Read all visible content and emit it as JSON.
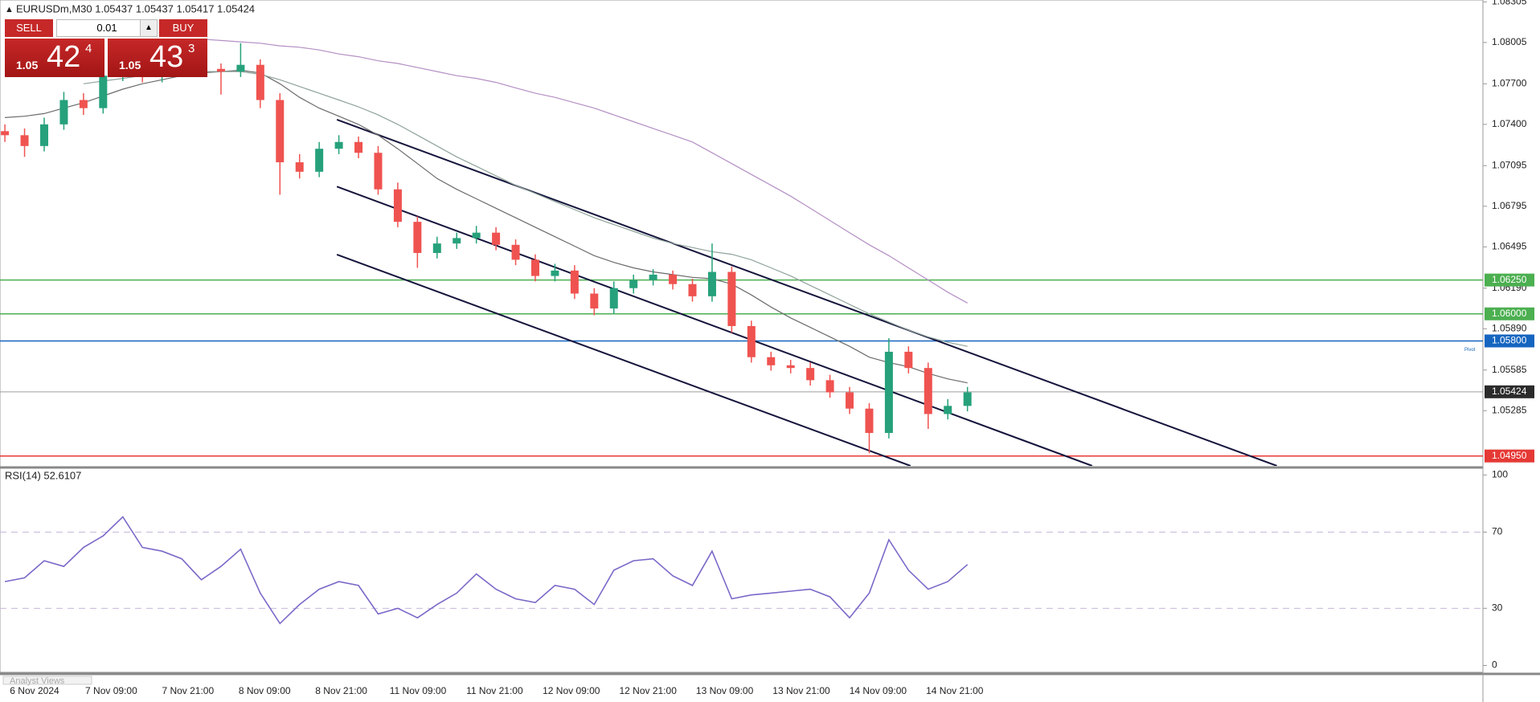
{
  "header": "EURUSDm,M30  1.05437 1.05437 1.05417 1.05424",
  "trade_panel": {
    "sell": "SELL",
    "buy": "BUY",
    "volume": "0.01",
    "bid": {
      "big": "1.05",
      "pips": "42",
      "point": "4"
    },
    "ask": {
      "big": "1.05",
      "pips": "43",
      "point": "3"
    }
  },
  "chart_data": [
    {
      "type": "candlestick",
      "ylim": [
        1.04877,
        1.08319
      ],
      "yticks": [
        1.08305,
        1.08005,
        {
          "value": 1.077,
          "label": "1.07700"
        },
        {
          "value": 1.074,
          "label": "1.07400"
        },
        1.07095,
        1.06795,
        1.06495,
        {
          "value": 1.0619,
          "label": "1.06190"
        },
        {
          "value": 1.0589,
          "label": "1.05890"
        },
        1.05585,
        1.05285
      ],
      "candles": {
        "open": [
          1.0735,
          1.0732,
          1.0724,
          1.074,
          1.0758,
          1.0752,
          1.0776,
          1.0779,
          1.0775,
          1.0781,
          1.0783,
          1.0781,
          1.0779,
          1.0784,
          1.0758,
          1.0712,
          1.0705,
          1.0722,
          1.0727,
          1.0719,
          1.0692,
          1.0668,
          1.0645,
          1.0652,
          1.0656,
          1.066,
          1.0651,
          1.064,
          1.0628,
          1.0632,
          1.0615,
          1.0604,
          1.0619,
          1.0625,
          1.0629,
          1.0622,
          1.0613,
          1.0631,
          1.0591,
          1.0568,
          1.0562,
          1.056,
          1.0551,
          1.0542,
          1.053,
          1.0512,
          1.0572,
          1.056,
          1.0526,
          1.0532
        ],
        "high": [
          1.074,
          1.0737,
          1.0745,
          1.0764,
          1.0763,
          1.0782,
          1.0784,
          1.0783,
          1.0786,
          1.0787,
          1.0786,
          1.0785,
          1.08,
          1.0788,
          1.0763,
          1.0718,
          1.0727,
          1.0732,
          1.0731,
          1.0724,
          1.0697,
          1.0672,
          1.0657,
          1.066,
          1.0665,
          1.0664,
          1.0655,
          1.0644,
          1.0637,
          1.0636,
          1.0619,
          1.0624,
          1.0629,
          1.0633,
          1.0632,
          1.0626,
          1.0652,
          1.0635,
          1.0595,
          1.0572,
          1.0566,
          1.0564,
          1.0555,
          1.0546,
          1.0534,
          1.0582,
          1.0576,
          1.0564,
          1.0537,
          1.0546
        ],
        "low": [
          1.0727,
          1.0716,
          1.072,
          1.0736,
          1.0747,
          1.0748,
          1.0772,
          1.0771,
          1.0771,
          1.0777,
          1.0777,
          1.0762,
          1.0775,
          1.0752,
          1.0688,
          1.07,
          1.0701,
          1.0718,
          1.0715,
          1.0688,
          1.0664,
          1.0634,
          1.0641,
          1.0648,
          1.0652,
          1.0647,
          1.0636,
          1.0624,
          1.0624,
          1.0611,
          1.0599,
          1.06,
          1.0615,
          1.0621,
          1.0618,
          1.0609,
          1.0609,
          1.0586,
          1.0564,
          1.0558,
          1.0556,
          1.0547,
          1.0538,
          1.0526,
          1.0497,
          1.0508,
          1.0556,
          1.0515,
          1.0522,
          1.0528
        ],
        "close": [
          1.0732,
          1.0724,
          1.074,
          1.0758,
          1.0752,
          1.0776,
          1.0779,
          1.0775,
          1.0781,
          1.0783,
          1.0781,
          1.0779,
          1.0784,
          1.0758,
          1.0712,
          1.0705,
          1.0722,
          1.0727,
          1.0719,
          1.0692,
          1.0668,
          1.0645,
          1.0652,
          1.0656,
          1.066,
          1.0651,
          1.064,
          1.0628,
          1.0632,
          1.0615,
          1.0604,
          1.0619,
          1.0625,
          1.0629,
          1.0622,
          1.0613,
          1.0631,
          1.0591,
          1.0568,
          1.0562,
          1.056,
          1.0551,
          1.0542,
          1.053,
          1.0512,
          1.0572,
          1.056,
          1.0526,
          1.0532,
          1.0542
        ],
        "up_color": "#26a17b",
        "down_color": "#ef5350"
      },
      "series": [
        {
          "color": "#6b6b6b",
          "values": [
            1.0745,
            1.0746,
            1.0748,
            1.0752,
            1.0756,
            1.0761,
            1.0766,
            1.077,
            1.0773,
            1.0776,
            1.0778,
            1.0779,
            1.078,
            1.0778,
            1.077,
            1.076,
            1.0752,
            1.0746,
            1.074,
            1.0732,
            1.0722,
            1.0711,
            1.07,
            1.0692,
            1.0685,
            1.0678,
            1.0671,
            1.0664,
            1.0657,
            1.065,
            1.0643,
            1.0638,
            1.0634,
            1.0631,
            1.0629,
            1.0627,
            1.0626,
            1.0622,
            1.0614,
            1.0605,
            1.0597,
            1.059,
            1.0583,
            1.0576,
            1.0568,
            1.0564,
            1.0561,
            1.0556,
            1.0552,
            1.0549
          ]
        },
        {
          "color": "#8fa39a",
          "values": [
            null,
            null,
            null,
            null,
            1.077,
            1.0772,
            1.0774,
            1.0776,
            1.0777,
            1.0778,
            1.0779,
            1.0779,
            1.0779,
            1.0777,
            1.0773,
            1.0768,
            1.0763,
            1.0758,
            1.0753,
            1.0747,
            1.074,
            1.0732,
            1.0724,
            1.0716,
            1.0709,
            1.0702,
            1.0695,
            1.0689,
            1.0683,
            1.0677,
            1.0671,
            1.0666,
            1.0661,
            1.0656,
            1.0652,
            1.0649,
            1.0646,
            1.0644,
            1.064,
            1.0634,
            1.0628,
            1.0621,
            1.0614,
            1.0607,
            1.06,
            1.0594,
            1.0588,
            1.0583,
            1.0579,
            1.0576
          ]
        },
        {
          "color": "#b48fc4",
          "values": [
            null,
            null,
            null,
            null,
            null,
            null,
            null,
            null,
            null,
            null,
            1.0803,
            1.0802,
            1.0801,
            1.08,
            1.0798,
            1.0797,
            1.0795,
            1.0792,
            1.079,
            1.0787,
            1.0785,
            1.0782,
            1.0779,
            1.0776,
            1.0774,
            1.0771,
            1.0767,
            1.0763,
            1.076,
            1.0756,
            1.0752,
            1.0747,
            1.0742,
            1.0737,
            1.0732,
            1.0727,
            1.0719,
            1.0711,
            1.0703,
            1.0695,
            1.0687,
            1.0678,
            1.0669,
            1.066,
            1.0651,
            1.0643,
            1.0634,
            1.0625,
            1.0616,
            1.0608
          ]
        }
      ],
      "trendlines": [
        {
          "color": "#14143c",
          "x": [
            16.9,
            64.75
          ],
          "y": [
            1.07435,
            1.04877
          ]
        },
        {
          "color": "#14143c",
          "x": [
            16.9,
            55.35
          ],
          "y": [
            1.0694,
            1.04877
          ]
        },
        {
          "color": "#14143c",
          "x": [
            16.9,
            46.1
          ],
          "y": [
            1.06438,
            1.04877
          ]
        }
      ],
      "levels": [
        {
          "value": 1.0625,
          "label": "1.06250",
          "color": "#4caf50"
        },
        {
          "value": 1.06,
          "label": "1.06000",
          "color": "#4caf50"
        },
        {
          "value": 1.058,
          "label": "1.05800",
          "color": "#1565c0",
          "note": "Pivot"
        },
        {
          "value": 1.05424,
          "label": "1.05424",
          "color": "#9e9e9e",
          "box": "#2b2b2b"
        },
        {
          "value": 1.0495,
          "label": "1.04950",
          "color": "#e53935"
        }
      ],
      "time_labels": [
        "6 Nov 2024",
        "7 Nov 09:00",
        "7 Nov 21:00",
        "8 Nov 09:00",
        "8 Nov 21:00",
        "11 Nov 09:00",
        "11 Nov 21:00",
        "12 Nov 09:00",
        "12 Nov 21:00",
        "13 Nov 09:00",
        "13 Nov 21:00",
        "14 Nov 09:00",
        "14 Nov 21:00"
      ]
    },
    {
      "type": "line",
      "title": "RSI(14) 52.6107",
      "ylim": [
        -3.6,
        103.1
      ],
      "yticks": [
        100,
        70,
        30,
        0
      ],
      "dashed": [
        70,
        30
      ],
      "series": [
        {
          "color": "#7b68c8",
          "values": [
            44,
            46,
            55,
            52,
            62,
            68,
            78,
            62,
            60,
            56,
            45,
            52,
            61,
            38,
            22,
            32,
            40,
            44,
            42,
            27,
            30,
            25,
            32,
            38,
            48,
            40,
            35,
            33,
            42,
            40,
            32,
            50,
            55,
            56,
            47,
            42,
            60,
            35,
            37,
            38,
            39,
            40,
            36,
            25,
            38,
            66,
            50,
            40,
            44,
            53
          ]
        }
      ]
    }
  ],
  "footer_tab": "Analyst Views"
}
